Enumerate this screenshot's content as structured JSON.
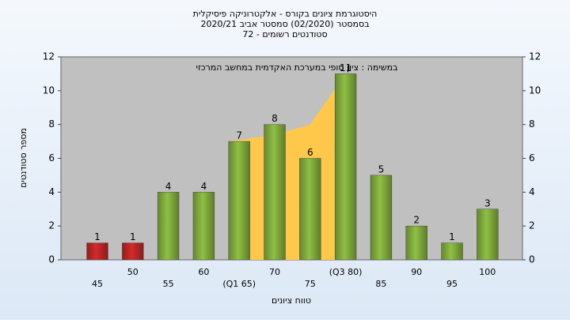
{
  "chart_data": {
    "type": "bar",
    "title": [
      "היסטוגרמת ציונים בקורס - אלקטרוניקה פיסיקלית",
      "בסמסטר  (02/2020)  סמסטר אביב 2020/21",
      "סטודנטים רשומים - 72"
    ],
    "annotation": "במשימה : ציון סופי במערכת האקדמית במחשב המרכזי",
    "x_label": "טווח ציונים",
    "y_label": "מספר סטודנטים",
    "categories": [
      "45",
      "50",
      "55",
      "60",
      "(Q1 65)",
      "70",
      "75",
      "(Q3 80)",
      "85",
      "90",
      "95",
      "100"
    ],
    "values": [
      1,
      1,
      4,
      4,
      7,
      8,
      6,
      11,
      5,
      2,
      1,
      3
    ],
    "colors": [
      "#d42a2a",
      "#d42a2a",
      "#8fc043",
      "#8fc043",
      "#8fc043",
      "#8fc043",
      "#8fc043",
      "#8fc043",
      "#8fc043",
      "#8fc043",
      "#8fc043",
      "#8fc043"
    ],
    "area": {
      "color": "#ffc84a",
      "values": [
        null,
        null,
        null,
        null,
        7,
        7.4,
        8,
        11,
        null,
        null,
        null,
        null
      ]
    },
    "ylim": [
      0,
      12
    ],
    "yticks": [
      0,
      2,
      4,
      6,
      8,
      10,
      12
    ],
    "grid": false
  }
}
